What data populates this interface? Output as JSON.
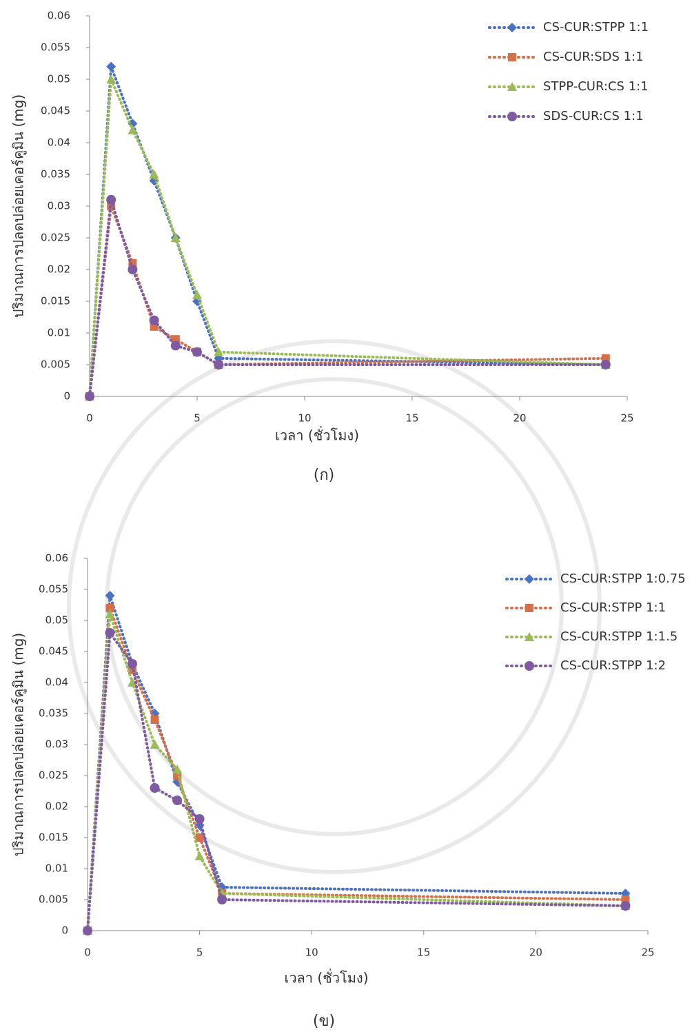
{
  "chart_data": [
    {
      "type": "line",
      "caption": "(ก)",
      "x_label": "เวลา (ชั่วโมง)",
      "y_label": "ปริมาณการปลดปล่อยเคอร์คูมิน (mg)",
      "x": [
        0,
        1,
        2,
        3,
        4,
        5,
        6,
        24
      ],
      "xlim": [
        0,
        25
      ],
      "xticks": [
        0,
        5,
        10,
        15,
        20,
        25
      ],
      "ylim": [
        0,
        0.06
      ],
      "yticks": [
        0,
        0.005,
        0.01,
        0.015,
        0.02,
        0.025,
        0.03,
        0.035,
        0.04,
        0.045,
        0.05,
        0.055,
        0.06
      ],
      "legend": "upper right",
      "series": [
        {
          "name": "CS-CUR:STPP 1:1",
          "color": "#4a72c4",
          "marker": "diamond",
          "values": [
            0,
            0.052,
            0.043,
            0.034,
            0.025,
            0.015,
            0.006,
            0.005
          ]
        },
        {
          "name": "CS-CUR:SDS 1:1",
          "color": "#d4704a",
          "marker": "square",
          "values": [
            0,
            0.03,
            0.021,
            0.011,
            0.009,
            0.007,
            0.005,
            0.006
          ]
        },
        {
          "name": "STPP-CUR:CS 1:1",
          "color": "#9bbb59",
          "marker": "triangle",
          "values": [
            0,
            0.05,
            0.042,
            0.035,
            0.025,
            0.016,
            0.007,
            0.005
          ]
        },
        {
          "name": "SDS-CUR:CS 1:1",
          "color": "#7e5aa0",
          "marker": "circle",
          "values": [
            0,
            0.031,
            0.02,
            0.012,
            0.008,
            0.007,
            0.005,
            0.005
          ]
        }
      ]
    },
    {
      "type": "line",
      "caption": "(ข)",
      "x_label": "เวลา (ชั่วโมง)",
      "y_label": "ปริมาณการปลดปล่อยเคอร์คูมิน (mg)",
      "x": [
        0,
        1,
        2,
        3,
        4,
        5,
        6,
        24
      ],
      "xlim": [
        0,
        25
      ],
      "xticks": [
        0,
        5,
        10,
        15,
        20,
        25
      ],
      "ylim": [
        0,
        0.06
      ],
      "yticks": [
        0,
        0.005,
        0.01,
        0.015,
        0.02,
        0.025,
        0.03,
        0.035,
        0.04,
        0.045,
        0.05,
        0.055,
        0.06
      ],
      "legend": "upper right",
      "series": [
        {
          "name": "CS-CUR:STPP 1:0.75",
          "color": "#4a72c4",
          "marker": "diamond",
          "values": [
            0,
            0.054,
            0.043,
            0.035,
            0.024,
            0.017,
            0.007,
            0.006
          ]
        },
        {
          "name": "CS-CUR:STPP 1:1",
          "color": "#d4704a",
          "marker": "square",
          "values": [
            0,
            0.052,
            0.042,
            0.034,
            0.025,
            0.015,
            0.006,
            0.005
          ]
        },
        {
          "name": "CS-CUR:STPP 1:1.5",
          "color": "#9bbb59",
          "marker": "triangle",
          "values": [
            0,
            0.051,
            0.04,
            0.03,
            0.026,
            0.012,
            0.006,
            0.004
          ]
        },
        {
          "name": "CS-CUR:STPP 1:2",
          "color": "#7e5aa0",
          "marker": "circle",
          "values": [
            0,
            0.048,
            0.043,
            0.023,
            0.021,
            0.018,
            0.005,
            0.004
          ]
        }
      ]
    }
  ]
}
